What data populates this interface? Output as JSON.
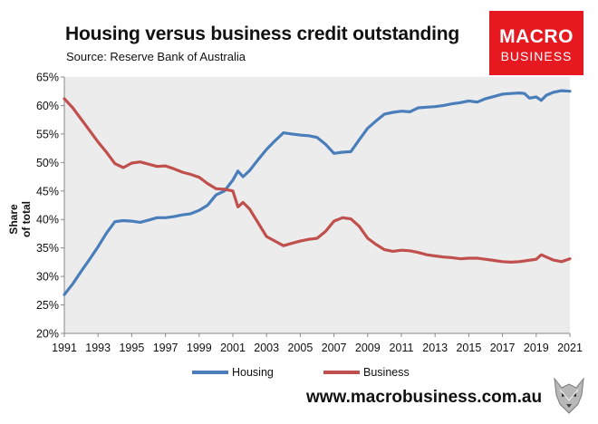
{
  "header": {
    "title": "Housing versus business credit outstanding",
    "source": "Source: Reserve Bank of Australia"
  },
  "logo": {
    "line1": "MACRO",
    "line2": "BUSINESS"
  },
  "footer": {
    "url": "www.macrobusiness.com.au"
  },
  "chart_data": {
    "type": "line",
    "title": "Housing versus business credit outstanding",
    "ylabel": "Share of total",
    "xlim": [
      1991,
      2021
    ],
    "ylim": [
      20,
      65
    ],
    "yticks": [
      20,
      25,
      30,
      35,
      40,
      45,
      50,
      55,
      60,
      65
    ],
    "ytick_labels": [
      "20%",
      "25%",
      "30%",
      "35%",
      "40%",
      "45%",
      "50%",
      "55%",
      "60%",
      "65%"
    ],
    "xticks": [
      1991,
      1993,
      1995,
      1997,
      1999,
      2001,
      2003,
      2005,
      2007,
      2009,
      2011,
      2013,
      2015,
      2017,
      2019,
      2021
    ],
    "xtick_labels": [
      "1991",
      "1993",
      "1995",
      "1997",
      "1999",
      "2001",
      "2003",
      "2005",
      "2007",
      "2009",
      "2011",
      "2013",
      "2015",
      "2017",
      "2019",
      "2021"
    ],
    "grid": false,
    "legend": "bottom",
    "series": [
      {
        "name": "Housing",
        "color": "#4a7ebb",
        "x": [
          1991.0,
          1991.5,
          1992.0,
          1992.5,
          1993.0,
          1993.5,
          1994.0,
          1994.5,
          1995.0,
          1995.5,
          1996.0,
          1996.5,
          1997.0,
          1997.5,
          1998.0,
          1998.5,
          1999.0,
          1999.5,
          2000.0,
          2000.5,
          2001.0,
          2001.3,
          2001.6,
          2002.0,
          2002.5,
          2003.0,
          2003.5,
          2004.0,
          2004.5,
          2005.0,
          2005.5,
          2006.0,
          2006.5,
          2007.0,
          2007.5,
          2008.0,
          2008.5,
          2009.0,
          2009.5,
          2010.0,
          2010.5,
          2011.0,
          2011.5,
          2012.0,
          2012.5,
          2013.0,
          2013.5,
          2014.0,
          2014.5,
          2015.0,
          2015.5,
          2016.0,
          2016.5,
          2017.0,
          2017.5,
          2018.0,
          2018.3,
          2018.6,
          2019.0,
          2019.3,
          2019.6,
          2020.0,
          2020.5,
          2021.0
        ],
        "values": [
          26.8,
          28.7,
          30.9,
          33.0,
          35.2,
          37.6,
          39.6,
          39.8,
          39.7,
          39.5,
          39.9,
          40.3,
          40.3,
          40.5,
          40.8,
          41.0,
          41.6,
          42.5,
          44.3,
          45.0,
          46.9,
          48.5,
          47.5,
          48.6,
          50.5,
          52.3,
          53.8,
          55.2,
          55.0,
          54.8,
          54.7,
          54.4,
          53.2,
          51.6,
          51.8,
          51.9,
          54.0,
          56.0,
          57.3,
          58.5,
          58.8,
          59.0,
          58.9,
          59.6,
          59.7,
          59.8,
          60.0,
          60.3,
          60.5,
          60.8,
          60.6,
          61.2,
          61.6,
          62.0,
          62.1,
          62.2,
          62.1,
          61.3,
          61.5,
          60.9,
          61.8,
          62.3,
          62.6,
          62.5
        ]
      },
      {
        "name": "Business",
        "color": "#c0504d",
        "x": [
          1991.0,
          1991.5,
          1992.0,
          1992.5,
          1993.0,
          1993.5,
          1994.0,
          1994.5,
          1995.0,
          1995.5,
          1996.0,
          1996.5,
          1997.0,
          1997.5,
          1998.0,
          1998.5,
          1999.0,
          1999.5,
          2000.0,
          2000.5,
          2001.0,
          2001.3,
          2001.6,
          2002.0,
          2002.5,
          2003.0,
          2003.5,
          2004.0,
          2004.5,
          2005.0,
          2005.5,
          2006.0,
          2006.5,
          2007.0,
          2007.5,
          2008.0,
          2008.5,
          2009.0,
          2009.5,
          2010.0,
          2010.5,
          2011.0,
          2011.5,
          2012.0,
          2012.5,
          2013.0,
          2013.5,
          2014.0,
          2014.5,
          2015.0,
          2015.5,
          2016.0,
          2016.5,
          2017.0,
          2017.5,
          2018.0,
          2018.5,
          2019.0,
          2019.3,
          2019.6,
          2020.0,
          2020.5,
          2021.0
        ],
        "values": [
          61.2,
          59.6,
          57.6,
          55.6,
          53.6,
          51.8,
          49.8,
          49.1,
          49.9,
          50.1,
          49.7,
          49.3,
          49.4,
          48.9,
          48.3,
          47.9,
          47.4,
          46.3,
          45.4,
          45.3,
          45.0,
          42.2,
          43.0,
          41.8,
          39.4,
          37.0,
          36.2,
          35.4,
          35.8,
          36.2,
          36.5,
          36.7,
          37.9,
          39.7,
          40.3,
          40.1,
          38.8,
          36.7,
          35.6,
          34.7,
          34.4,
          34.6,
          34.5,
          34.2,
          33.8,
          33.6,
          33.4,
          33.3,
          33.1,
          33.2,
          33.2,
          33.0,
          32.8,
          32.6,
          32.5,
          32.6,
          32.8,
          33.0,
          33.8,
          33.4,
          32.9,
          32.6,
          33.1
        ]
      }
    ]
  }
}
